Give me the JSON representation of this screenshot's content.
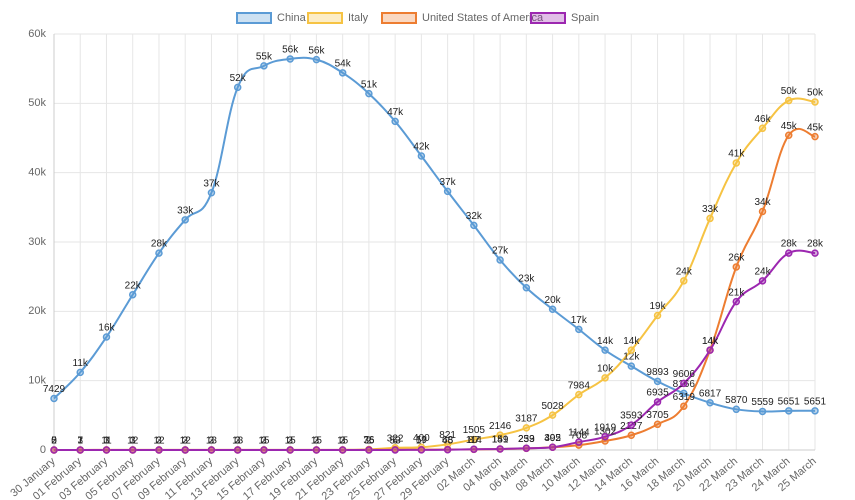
{
  "chart_data": {
    "type": "line",
    "categories": [
      "30 January",
      "01 February",
      "03 February",
      "05 February",
      "07 February",
      "09 February",
      "11 February",
      "13 February",
      "15 February",
      "17 February",
      "19 February",
      "21 February",
      "23 February",
      "25 February",
      "27 February",
      "29 February",
      "02 March",
      "04 March",
      "06 March",
      "08 March",
      "10 March",
      "12 March",
      "14 March",
      "16 March",
      "18 March",
      "20 March",
      "22 March",
      "23 March",
      "24 March",
      "25 March"
    ],
    "ylim": [
      0,
      60000
    ],
    "yticks": [
      0,
      {
        "value": 10000,
        "label": "10k"
      },
      {
        "value": 20000,
        "label": "20k"
      },
      {
        "value": 30000,
        "label": "30k"
      },
      {
        "value": 40000,
        "label": "40k"
      },
      {
        "value": 50000,
        "label": "50k"
      },
      {
        "value": 60000,
        "label": "60k"
      }
    ],
    "grid": true,
    "legend": "top",
    "series": [
      {
        "name": "China",
        "color": "#5b9bd5",
        "values": [
          7429,
          11200,
          16300,
          22400,
          28400,
          33200,
          37100,
          52300,
          55400,
          56400,
          56300,
          54400,
          51400,
          47400,
          42400,
          37300,
          32400,
          27400,
          23400,
          20300,
          17400,
          14400,
          12100,
          9893,
          8166,
          6817,
          5870,
          5559,
          5651,
          5651
        ],
        "value_labels": [
          "7429",
          "11k",
          "16k",
          "22k",
          "28k",
          "33k",
          "37k",
          "52k",
          "55k",
          "56k",
          "56k",
          "54k",
          "51k",
          "47k",
          "42k",
          "37k",
          "32k",
          "27k",
          "23k",
          "20k",
          "17k",
          "14k",
          "12k",
          "9893",
          "8166",
          "6817",
          "5870",
          "5559",
          "5651",
          "5651"
        ]
      },
      {
        "name": "Italy",
        "color": "#f6c343",
        "values": [
          2,
          3,
          3,
          3,
          3,
          3,
          3,
          3,
          3,
          3,
          3,
          3,
          76,
          322,
          400,
          821,
          1505,
          2146,
          3187,
          5028,
          7984,
          10400,
          14400,
          19400,
          24400,
          33400,
          41400,
          46400,
          50400,
          50200
        ],
        "value_labels": [
          "2",
          "3",
          "3",
          "3",
          "3",
          "3",
          "3",
          "3",
          "3",
          "3",
          "3",
          "3",
          "76",
          "322",
          "400",
          "821",
          "1505",
          "2146",
          "3187",
          "5028",
          "7984",
          "10k",
          "14k",
          "19k",
          "24k",
          "33k",
          "41k",
          "46k",
          "50k",
          "50k"
        ]
      },
      {
        "name": "United States of America",
        "color": "#ed7d31",
        "values": [
          5,
          7,
          11,
          12,
          12,
          12,
          13,
          13,
          15,
          15,
          15,
          15,
          35,
          53,
          59,
          68,
          87,
          149,
          233,
          402,
          708,
          1302,
          2127,
          3705,
          6319,
          14400,
          26400,
          34400,
          45400,
          45200
        ],
        "value_labels": [
          "5",
          "7",
          "11",
          "12",
          "12",
          "12",
          "13",
          "13",
          "15",
          "15",
          "15",
          "15",
          "35",
          "53",
          "59",
          "68",
          "87",
          "149",
          "233",
          "402",
          "708",
          "1302",
          "2127",
          "3705",
          "6319",
          "14k",
          "26k",
          "34k",
          "45k",
          "45k"
        ]
      },
      {
        "name": "Spain",
        "color": "#9c27b0",
        "values": [
          0,
          1,
          1,
          1,
          2,
          2,
          2,
          2,
          2,
          2,
          2,
          2,
          2,
          6,
          17,
          45,
          114,
          151,
          259,
          395,
          1144,
          1919,
          3593,
          6935,
          9606,
          14400,
          21400,
          24400,
          28400,
          28400
        ],
        "value_labels": [
          "0",
          "1",
          "1",
          "1",
          "2",
          "2",
          "2",
          "2",
          "2",
          "2",
          "2",
          "2",
          "2",
          "6",
          "17",
          "45",
          "114",
          "151",
          "259",
          "395",
          "1144",
          "1919",
          "3593",
          "6935",
          "9606",
          "14k",
          "21k",
          "24k",
          "28k",
          "28k"
        ]
      }
    ]
  }
}
